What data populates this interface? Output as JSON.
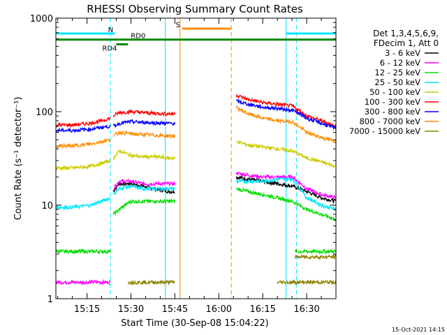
{
  "chart_data": {
    "type": "line",
    "title": "RHESSI Observing Summary Count Rates",
    "xlabel": "Start Time (30-Sep-08 15:04:22)",
    "ylabel": "Count Rate (s⁻¹ detector⁻¹)",
    "y_scale": "log",
    "ylim": [
      1,
      1000
    ],
    "xlim": [
      "15:04:22",
      "16:40:00"
    ],
    "x_ticks": [
      "15:15",
      "15:30",
      "15:45",
      "16:00",
      "16:15",
      "16:30"
    ],
    "y_ticks": [
      "1",
      "10",
      "100",
      "1000"
    ],
    "grid": false,
    "legend_position": "right",
    "legend_header": [
      "Det 1,3,4,5,6,9,",
      "FDecim 1, Att 0"
    ],
    "footer_date": "15-Oct-2021 14:15",
    "intervals": {
      "night_dashed_lines": [
        "15:23:00",
        "16:26:30"
      ],
      "night_solid_lines": [
        "15:41:45",
        "16:23:00"
      ],
      "saa_orange_solid": "15:46:45",
      "saa_orange_dashed": "16:04:15",
      "top_bars": [
        {
          "label": "N",
          "color": "#00e5ff",
          "start": "15:04:22",
          "end": "15:24:30"
        },
        {
          "label": "",
          "color": "#00e5ff",
          "start": "16:23:00",
          "end": "16:40:00"
        },
        {
          "label": "S",
          "color": "#ff8c00",
          "start": "15:47:30",
          "end": "16:04:15"
        }
      ],
      "flag_bars": [
        {
          "label": "RD0",
          "color": "#008800",
          "start": "15:04:22",
          "end": "16:40:00",
          "level": 590
        },
        {
          "label": "RD4",
          "color": "#008800",
          "start": "15:25:00",
          "end": "15:29:00",
          "level": 525
        }
      ]
    },
    "series": [
      {
        "name": "3 - 6 keV",
        "color": "#000000",
        "segments": [
          {
            "x": [
              "15:24",
              "15:26",
              "15:30",
              "15:34",
              "15:38",
              "15:43",
              "15:45"
            ],
            "y": [
              14,
              17,
              17,
              16,
              15,
              14,
              14
            ]
          },
          {
            "x": [
              "16:06",
              "16:10",
              "16:15",
              "16:20",
              "16:25",
              "16:30",
              "16:35",
              "16:40"
            ],
            "y": [
              20,
              19,
              18,
              17,
              16,
              14,
              12,
              11
            ]
          }
        ]
      },
      {
        "name": "6 - 12 keV",
        "color": "#ff00ff",
        "segments": [
          {
            "x": [
              "15:04",
              "15:10",
              "15:16",
              "15:20",
              "15:23"
            ],
            "y": [
              1.5,
              1.5,
              1.5,
              1.5,
              1.5
            ]
          },
          {
            "x": [
              "15:24",
              "15:26",
              "15:30",
              "15:34",
              "15:38",
              "15:43",
              "15:45"
            ],
            "y": [
              15,
              18,
              18,
              17,
              17,
              17,
              17
            ]
          },
          {
            "x": [
              "16:06",
              "16:10",
              "16:15",
              "16:20",
              "16:25",
              "16:30",
              "16:35",
              "16:40"
            ],
            "y": [
              22,
              21,
              20,
              20,
              20,
              15,
              13,
              12
            ]
          }
        ]
      },
      {
        "name": "12 - 25 keV",
        "color": "#00dd00",
        "segments": [
          {
            "x": [
              "15:04",
              "15:10",
              "15:16",
              "15:20",
              "15:23"
            ],
            "y": [
              3.2,
              3.2,
              3.2,
              3.2,
              3.2
            ]
          },
          {
            "x": [
              "15:24",
              "15:26",
              "15:30",
              "15:34",
              "15:38",
              "15:43",
              "15:45"
            ],
            "y": [
              8,
              9,
              11,
              11,
              11,
              11,
              11
            ]
          },
          {
            "x": [
              "16:06",
              "16:10",
              "16:15",
              "16:20",
              "16:25",
              "16:30",
              "16:35",
              "16:40"
            ],
            "y": [
              15,
              14,
              13,
              12,
              11,
              9,
              8,
              7
            ]
          },
          {
            "x": [
              "16:26",
              "16:30",
              "16:35",
              "16:40"
            ],
            "y": [
              3.2,
              3.2,
              3.2,
              3.2
            ]
          }
        ]
      },
      {
        "name": "25 - 50 keV",
        "color": "#00e5ff",
        "segments": [
          {
            "x": [
              "15:04",
              "15:10",
              "15:16",
              "15:20",
              "15:23"
            ],
            "y": [
              9.5,
              9.5,
              10,
              11,
              12
            ]
          },
          {
            "x": [
              "15:24",
              "15:26",
              "15:30",
              "15:34",
              "15:38",
              "15:43",
              "15:45"
            ],
            "y": [
              13,
              15,
              16,
              15,
              15,
              15,
              15
            ]
          },
          {
            "x": [
              "16:06",
              "16:10",
              "16:15",
              "16:20",
              "16:25",
              "16:30",
              "16:35",
              "16:40"
            ],
            "y": [
              18,
              18,
              18,
              19,
              19,
              12,
              10,
              9
            ]
          }
        ]
      },
      {
        "name": "50 - 100 keV",
        "color": "#cccc00",
        "segments": [
          {
            "x": [
              "15:04",
              "15:10",
              "15:16",
              "15:20",
              "15:23"
            ],
            "y": [
              25,
              25,
              26,
              28,
              30
            ]
          },
          {
            "x": [
              "15:24",
              "15:26",
              "15:30",
              "15:34",
              "15:38",
              "15:43",
              "15:45"
            ],
            "y": [
              32,
              38,
              34,
              33,
              33,
              32,
              32
            ]
          },
          {
            "x": [
              "16:06",
              "16:10",
              "16:15",
              "16:20",
              "16:25",
              "16:30",
              "16:35",
              "16:40"
            ],
            "y": [
              48,
              44,
              42,
              40,
              38,
              32,
              29,
              26
            ]
          }
        ]
      },
      {
        "name": "100 - 300 keV",
        "color": "#ff0000",
        "segments": [
          {
            "x": [
              "15:04",
              "15:10",
              "15:16",
              "15:20",
              "15:23"
            ],
            "y": [
              72,
              72,
              75,
              80,
              85
            ]
          },
          {
            "x": [
              "15:24",
              "15:26",
              "15:30",
              "15:34",
              "15:38",
              "15:43",
              "15:45"
            ],
            "y": [
              90,
              98,
              100,
              98,
              96,
              95,
              95
            ]
          },
          {
            "x": [
              "16:06",
              "16:10",
              "16:15",
              "16:20",
              "16:25",
              "16:30",
              "16:35",
              "16:40"
            ],
            "y": [
              150,
              135,
              125,
              120,
              115,
              90,
              80,
              70
            ]
          }
        ]
      },
      {
        "name": "300 - 800 keV",
        "color": "#0000ff",
        "segments": [
          {
            "x": [
              "15:04",
              "15:10",
              "15:16",
              "15:20",
              "15:23"
            ],
            "y": [
              63,
              63,
              65,
              68,
              70
            ]
          },
          {
            "x": [
              "15:24",
              "15:26",
              "15:30",
              "15:34",
              "15:38",
              "15:43",
              "15:45"
            ],
            "y": [
              70,
              75,
              78,
              77,
              76,
              75,
              75
            ]
          },
          {
            "x": [
              "16:06",
              "16:10",
              "16:15",
              "16:20",
              "16:25",
              "16:30",
              "16:35",
              "16:40"
            ],
            "y": [
              130,
              120,
              112,
              108,
              104,
              85,
              75,
              66
            ]
          }
        ]
      },
      {
        "name": "800 - 7000 keV",
        "color": "#ff8c00",
        "segments": [
          {
            "x": [
              "15:04",
              "15:10",
              "15:16",
              "15:20",
              "15:23"
            ],
            "y": [
              43,
              43,
              45,
              48,
              50
            ]
          },
          {
            "x": [
              "15:24",
              "15:26",
              "15:30",
              "15:34",
              "15:38",
              "15:43",
              "15:45"
            ],
            "y": [
              55,
              60,
              58,
              57,
              56,
              55,
              55
            ]
          },
          {
            "x": [
              "16:06",
              "16:10",
              "16:15",
              "16:20",
              "16:25",
              "16:30",
              "16:35",
              "16:40"
            ],
            "y": [
              110,
              95,
              85,
              80,
              78,
              60,
              53,
              48
            ]
          }
        ]
      },
      {
        "name": "7000 - 15000 keV",
        "color": "#8b8000",
        "segments": [
          {
            "x": [
              "15:29",
              "15:34",
              "15:38",
              "15:43",
              "15:45"
            ],
            "y": [
              1.5,
              1.5,
              1.5,
              1.5,
              1.5
            ]
          },
          {
            "x": [
              "16:20",
              "16:25",
              "16:30",
              "16:35",
              "16:40"
            ],
            "y": [
              1.5,
              1.5,
              1.5,
              1.5,
              1.5
            ]
          },
          {
            "x": [
              "16:26",
              "16:30",
              "16:35",
              "16:40"
            ],
            "y": [
              2.8,
              2.8,
              2.8,
              2.8
            ]
          }
        ]
      }
    ]
  }
}
